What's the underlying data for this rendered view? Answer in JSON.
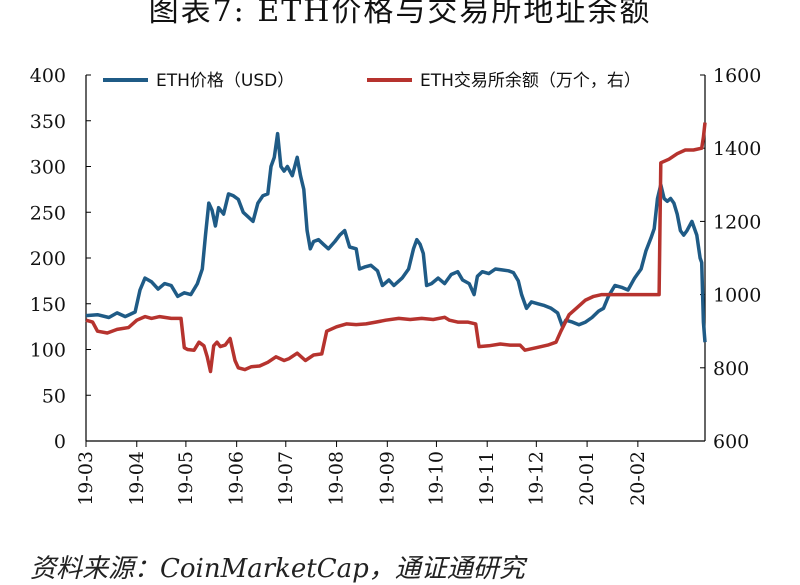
{
  "figure": {
    "title": "图表7: ETH价格与交易所地址余额",
    "source": "资料来源：CoinMarketCap，通证通研究"
  },
  "chart_data": {
    "type": "line",
    "x_labels": [
      "19-03",
      "19-04",
      "19-05",
      "19-06",
      "19-07",
      "19-08",
      "19-09",
      "19-10",
      "19-11",
      "19-12",
      "20-01",
      "20-02"
    ],
    "x_range": [
      "2019-03-01",
      "2020-03-13"
    ],
    "y_left": {
      "ylim": [
        0,
        400
      ],
      "ticks": [
        0,
        50,
        100,
        150,
        200,
        250,
        300,
        350,
        400
      ]
    },
    "y_right": {
      "ylim": [
        600,
        1600
      ],
      "ticks": [
        600,
        800,
        1000,
        1200,
        1400,
        1600
      ]
    },
    "grid": false,
    "legend_position": "top",
    "series": [
      {
        "name": "ETH价格（USD）",
        "axis": "left",
        "color": "#1f5b86",
        "points": [
          [
            "2019-03-01",
            137
          ],
          [
            "2019-03-08",
            138
          ],
          [
            "2019-03-15",
            135
          ],
          [
            "2019-03-20",
            140
          ],
          [
            "2019-03-25",
            136
          ],
          [
            "2019-03-31",
            141
          ],
          [
            "2019-04-03",
            165
          ],
          [
            "2019-04-06",
            178
          ],
          [
            "2019-04-10",
            174
          ],
          [
            "2019-04-14",
            166
          ],
          [
            "2019-04-18",
            172
          ],
          [
            "2019-04-22",
            170
          ],
          [
            "2019-04-26",
            158
          ],
          [
            "2019-04-30",
            162
          ],
          [
            "2019-05-04",
            160
          ],
          [
            "2019-05-08",
            172
          ],
          [
            "2019-05-11",
            188
          ],
          [
            "2019-05-13",
            225
          ],
          [
            "2019-05-15",
            260
          ],
          [
            "2019-05-17",
            252
          ],
          [
            "2019-05-19",
            235
          ],
          [
            "2019-05-21",
            255
          ],
          [
            "2019-05-24",
            248
          ],
          [
            "2019-05-27",
            270
          ],
          [
            "2019-05-30",
            268
          ],
          [
            "2019-06-02",
            264
          ],
          [
            "2019-06-05",
            250
          ],
          [
            "2019-06-08",
            245
          ],
          [
            "2019-06-11",
            240
          ],
          [
            "2019-06-14",
            260
          ],
          [
            "2019-06-17",
            268
          ],
          [
            "2019-06-20",
            270
          ],
          [
            "2019-06-22",
            300
          ],
          [
            "2019-06-24",
            310
          ],
          [
            "2019-06-26",
            336
          ],
          [
            "2019-06-28",
            300
          ],
          [
            "2019-06-30",
            295
          ],
          [
            "2019-07-02",
            300
          ],
          [
            "2019-07-05",
            290
          ],
          [
            "2019-07-08",
            310
          ],
          [
            "2019-07-10",
            290
          ],
          [
            "2019-07-12",
            275
          ],
          [
            "2019-07-14",
            230
          ],
          [
            "2019-07-16",
            210
          ],
          [
            "2019-07-18",
            218
          ],
          [
            "2019-07-21",
            220
          ],
          [
            "2019-07-24",
            215
          ],
          [
            "2019-07-27",
            210
          ],
          [
            "2019-07-31",
            218
          ],
          [
            "2019-08-03",
            225
          ],
          [
            "2019-08-06",
            230
          ],
          [
            "2019-08-09",
            212
          ],
          [
            "2019-08-13",
            210
          ],
          [
            "2019-08-15",
            188
          ],
          [
            "2019-08-18",
            190
          ],
          [
            "2019-08-22",
            192
          ],
          [
            "2019-08-26",
            186
          ],
          [
            "2019-08-29",
            170
          ],
          [
            "2019-09-02",
            176
          ],
          [
            "2019-09-05",
            170
          ],
          [
            "2019-09-10",
            178
          ],
          [
            "2019-09-14",
            188
          ],
          [
            "2019-09-17",
            210
          ],
          [
            "2019-09-19",
            220
          ],
          [
            "2019-09-21",
            215
          ],
          [
            "2019-09-23",
            205
          ],
          [
            "2019-09-25",
            170
          ],
          [
            "2019-09-28",
            172
          ],
          [
            "2019-10-02",
            178
          ],
          [
            "2019-10-06",
            172
          ],
          [
            "2019-10-10",
            182
          ],
          [
            "2019-10-14",
            185
          ],
          [
            "2019-10-17",
            176
          ],
          [
            "2019-10-21",
            172
          ],
          [
            "2019-10-24",
            160
          ],
          [
            "2019-10-26",
            180
          ],
          [
            "2019-10-29",
            185
          ],
          [
            "2019-11-02",
            183
          ],
          [
            "2019-11-06",
            188
          ],
          [
            "2019-11-10",
            187
          ],
          [
            "2019-11-14",
            186
          ],
          [
            "2019-11-17",
            184
          ],
          [
            "2019-11-20",
            175
          ],
          [
            "2019-11-22",
            160
          ],
          [
            "2019-11-25",
            145
          ],
          [
            "2019-11-28",
            152
          ],
          [
            "2019-12-02",
            150
          ],
          [
            "2019-12-06",
            148
          ],
          [
            "2019-12-10",
            145
          ],
          [
            "2019-12-14",
            140
          ],
          [
            "2019-12-17",
            125
          ],
          [
            "2019-12-19",
            132
          ],
          [
            "2019-12-23",
            130
          ],
          [
            "2019-12-27",
            127
          ],
          [
            "2019-12-31",
            130
          ],
          [
            "2020-01-04",
            135
          ],
          [
            "2020-01-08",
            142
          ],
          [
            "2020-01-11",
            145
          ],
          [
            "2020-01-14",
            158
          ],
          [
            "2020-01-18",
            170
          ],
          [
            "2020-01-22",
            168
          ],
          [
            "2020-01-26",
            165
          ],
          [
            "2020-01-30",
            178
          ],
          [
            "2020-02-03",
            188
          ],
          [
            "2020-02-06",
            208
          ],
          [
            "2020-02-09",
            222
          ],
          [
            "2020-02-11",
            232
          ],
          [
            "2020-02-13",
            265
          ],
          [
            "2020-02-15",
            280
          ],
          [
            "2020-02-17",
            265
          ],
          [
            "2020-02-19",
            262
          ],
          [
            "2020-02-21",
            265
          ],
          [
            "2020-02-23",
            260
          ],
          [
            "2020-02-25",
            248
          ],
          [
            "2020-02-27",
            230
          ],
          [
            "2020-02-29",
            225
          ],
          [
            "2020-03-02",
            230
          ],
          [
            "2020-03-05",
            240
          ],
          [
            "2020-03-08",
            225
          ],
          [
            "2020-03-10",
            200
          ],
          [
            "2020-03-11",
            195
          ],
          [
            "2020-03-12",
            130
          ],
          [
            "2020-03-13",
            108
          ]
        ]
      },
      {
        "name": "ETH交易所余额（万个，右）",
        "axis": "right",
        "color": "#b6332e",
        "points": [
          [
            "2019-03-01",
            930
          ],
          [
            "2019-03-05",
            925
          ],
          [
            "2019-03-08",
            900
          ],
          [
            "2019-03-14",
            895
          ],
          [
            "2019-03-20",
            905
          ],
          [
            "2019-03-27",
            910
          ],
          [
            "2019-04-01",
            930
          ],
          [
            "2019-04-06",
            940
          ],
          [
            "2019-04-10",
            935
          ],
          [
            "2019-04-15",
            940
          ],
          [
            "2019-04-22",
            935
          ],
          [
            "2019-04-28",
            935
          ],
          [
            "2019-04-30",
            855
          ],
          [
            "2019-05-02",
            850
          ],
          [
            "2019-05-06",
            848
          ],
          [
            "2019-05-09",
            870
          ],
          [
            "2019-05-12",
            860
          ],
          [
            "2019-05-14",
            830
          ],
          [
            "2019-05-16",
            790
          ],
          [
            "2019-05-18",
            860
          ],
          [
            "2019-05-20",
            870
          ],
          [
            "2019-05-22",
            858
          ],
          [
            "2019-05-25",
            862
          ],
          [
            "2019-05-28",
            880
          ],
          [
            "2019-05-31",
            820
          ],
          [
            "2019-06-02",
            800
          ],
          [
            "2019-06-06",
            795
          ],
          [
            "2019-06-10",
            803
          ],
          [
            "2019-06-15",
            805
          ],
          [
            "2019-06-20",
            815
          ],
          [
            "2019-06-25",
            830
          ],
          [
            "2019-06-30",
            820
          ],
          [
            "2019-07-03",
            825
          ],
          [
            "2019-07-08",
            840
          ],
          [
            "2019-07-13",
            820
          ],
          [
            "2019-07-18",
            835
          ],
          [
            "2019-07-23",
            838
          ],
          [
            "2019-07-26",
            900
          ],
          [
            "2019-08-01",
            912
          ],
          [
            "2019-08-07",
            920
          ],
          [
            "2019-08-13",
            918
          ],
          [
            "2019-08-19",
            920
          ],
          [
            "2019-08-25",
            925
          ],
          [
            "2019-08-31",
            930
          ],
          [
            "2019-09-08",
            935
          ],
          [
            "2019-09-15",
            932
          ],
          [
            "2019-09-22",
            935
          ],
          [
            "2019-09-29",
            932
          ],
          [
            "2019-10-06",
            938
          ],
          [
            "2019-10-09",
            930
          ],
          [
            "2019-10-14",
            925
          ],
          [
            "2019-10-20",
            925
          ],
          [
            "2019-10-25",
            920
          ],
          [
            "2019-10-27",
            858
          ],
          [
            "2019-11-02",
            860
          ],
          [
            "2019-11-09",
            865
          ],
          [
            "2019-11-15",
            862
          ],
          [
            "2019-11-21",
            862
          ],
          [
            "2019-11-24",
            848
          ],
          [
            "2019-12-01",
            855
          ],
          [
            "2019-12-08",
            862
          ],
          [
            "2019-12-13",
            870
          ],
          [
            "2019-12-16",
            900
          ],
          [
            "2019-12-21",
            945
          ],
          [
            "2019-12-26",
            965
          ],
          [
            "2019-12-31",
            985
          ],
          [
            "2020-01-05",
            995
          ],
          [
            "2020-01-10",
            1000
          ],
          [
            "2020-01-17",
            1000
          ],
          [
            "2020-01-24",
            1000
          ],
          [
            "2020-02-01",
            1000
          ],
          [
            "2020-02-08",
            1000
          ],
          [
            "2020-02-14",
            1000
          ],
          [
            "2020-02-15",
            1360
          ],
          [
            "2020-02-20",
            1370
          ],
          [
            "2020-02-25",
            1385
          ],
          [
            "2020-03-01",
            1395
          ],
          [
            "2020-03-06",
            1395
          ],
          [
            "2020-03-11",
            1400
          ],
          [
            "2020-03-12",
            1430
          ],
          [
            "2020-03-13",
            1470
          ]
        ]
      }
    ]
  }
}
